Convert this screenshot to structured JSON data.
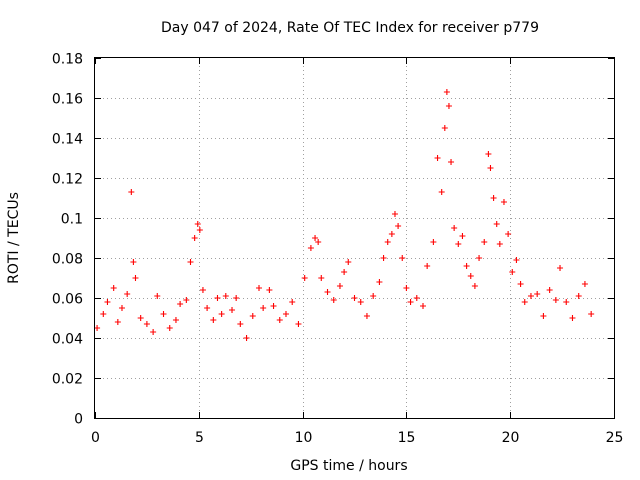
{
  "chart_data": {
    "type": "scatter",
    "title": "Day 047 of 2024, Rate Of TEC Index for receiver p779",
    "xlabel": "GPS time / hours",
    "ylabel": "ROTI / TECUs",
    "xlim": [
      0,
      25
    ],
    "ylim": [
      0,
      0.18
    ],
    "xticks": [
      0,
      5,
      10,
      15,
      20,
      25
    ],
    "xtick_labels": [
      "0",
      "5",
      "10",
      "15",
      "20",
      "25"
    ],
    "yticks": [
      0,
      0.02,
      0.04,
      0.06,
      0.08,
      0.1,
      0.12,
      0.14,
      0.16,
      0.18
    ],
    "ytick_labels": [
      "0",
      "0.02",
      "0.04",
      "0.06",
      "0.08",
      "0.1",
      "0.12",
      "0.14",
      "0.16",
      "0.18"
    ],
    "grid": true,
    "marker": "+",
    "marker_color": "#ff0000",
    "series": [
      {
        "name": "ROTI",
        "x": [
          0.1,
          0.4,
          0.6,
          0.9,
          1.1,
          1.3,
          1.55,
          1.75,
          1.85,
          1.95,
          2.2,
          2.5,
          2.8,
          3.0,
          3.3,
          3.6,
          3.9,
          4.1,
          4.4,
          4.6,
          4.8,
          4.95,
          5.05,
          5.2,
          5.4,
          5.7,
          5.9,
          6.1,
          6.3,
          6.6,
          6.8,
          7.0,
          7.3,
          7.6,
          7.9,
          8.1,
          8.4,
          8.6,
          8.9,
          9.2,
          9.5,
          9.8,
          10.1,
          10.4,
          10.6,
          10.75,
          10.9,
          11.2,
          11.5,
          11.8,
          12.0,
          12.2,
          12.5,
          12.8,
          13.1,
          13.4,
          13.7,
          13.9,
          14.1,
          14.3,
          14.45,
          14.6,
          14.8,
          15.0,
          15.2,
          15.5,
          15.8,
          16.0,
          16.3,
          16.5,
          16.7,
          16.85,
          16.95,
          17.05,
          17.15,
          17.3,
          17.5,
          17.7,
          17.9,
          18.1,
          18.3,
          18.5,
          18.75,
          18.95,
          19.05,
          19.2,
          19.35,
          19.5,
          19.7,
          19.9,
          20.1,
          20.3,
          20.5,
          20.7,
          21.0,
          21.3,
          21.6,
          21.9,
          22.2,
          22.4,
          22.7,
          23.0,
          23.3,
          23.6,
          23.9
        ],
        "y": [
          0.045,
          0.052,
          0.058,
          0.065,
          0.048,
          0.055,
          0.062,
          0.113,
          0.078,
          0.07,
          0.05,
          0.047,
          0.043,
          0.061,
          0.052,
          0.045,
          0.049,
          0.057,
          0.059,
          0.078,
          0.09,
          0.097,
          0.094,
          0.064,
          0.055,
          0.049,
          0.06,
          0.052,
          0.061,
          0.054,
          0.06,
          0.047,
          0.04,
          0.051,
          0.065,
          0.055,
          0.064,
          0.056,
          0.049,
          0.052,
          0.058,
          0.047,
          0.07,
          0.085,
          0.09,
          0.088,
          0.07,
          0.063,
          0.059,
          0.066,
          0.073,
          0.078,
          0.06,
          0.058,
          0.051,
          0.061,
          0.068,
          0.08,
          0.088,
          0.092,
          0.102,
          0.096,
          0.08,
          0.065,
          0.058,
          0.06,
          0.056,
          0.076,
          0.088,
          0.13,
          0.113,
          0.145,
          0.163,
          0.156,
          0.128,
          0.095,
          0.087,
          0.091,
          0.076,
          0.071,
          0.066,
          0.08,
          0.088,
          0.132,
          0.125,
          0.11,
          0.097,
          0.087,
          0.108,
          0.092,
          0.073,
          0.079,
          0.067,
          0.058,
          0.061,
          0.062,
          0.051,
          0.064,
          0.059,
          0.075,
          0.058,
          0.05,
          0.061,
          0.067,
          0.052
        ]
      }
    ]
  }
}
